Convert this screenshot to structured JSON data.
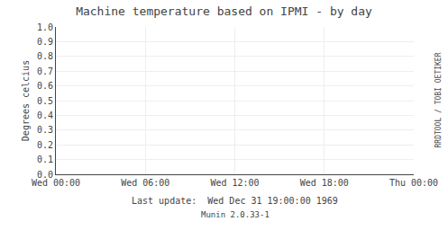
{
  "chart_data": {
    "type": "line",
    "title": "Machine temperature based on IPMI - by day",
    "ylabel": "Degrees celcius",
    "series": [],
    "xlim": [
      0,
      24
    ],
    "xticks": [
      {
        "value": 0,
        "label": "Wed 00:00"
      },
      {
        "value": 6,
        "label": "Wed 06:00"
      },
      {
        "value": 12,
        "label": "Wed 12:00"
      },
      {
        "value": 18,
        "label": "Wed 18:00"
      },
      {
        "value": 24,
        "label": "Thu 00:00"
      }
    ],
    "ylim": [
      0.0,
      1.0
    ],
    "yticks": [
      {
        "value": 0,
        "label": "0.0"
      },
      0.1,
      0.2,
      0.3,
      0.4,
      0.5,
      0.6,
      0.7,
      0.8,
      0.9,
      {
        "value": 1,
        "label": "1.0"
      }
    ],
    "grid": true,
    "annotations": [
      "Last update:  Wed Dec 31 19:00:00 1969",
      "Munin 2.0.33-1",
      "RRDTOOL / TOBI OETIKER"
    ]
  }
}
